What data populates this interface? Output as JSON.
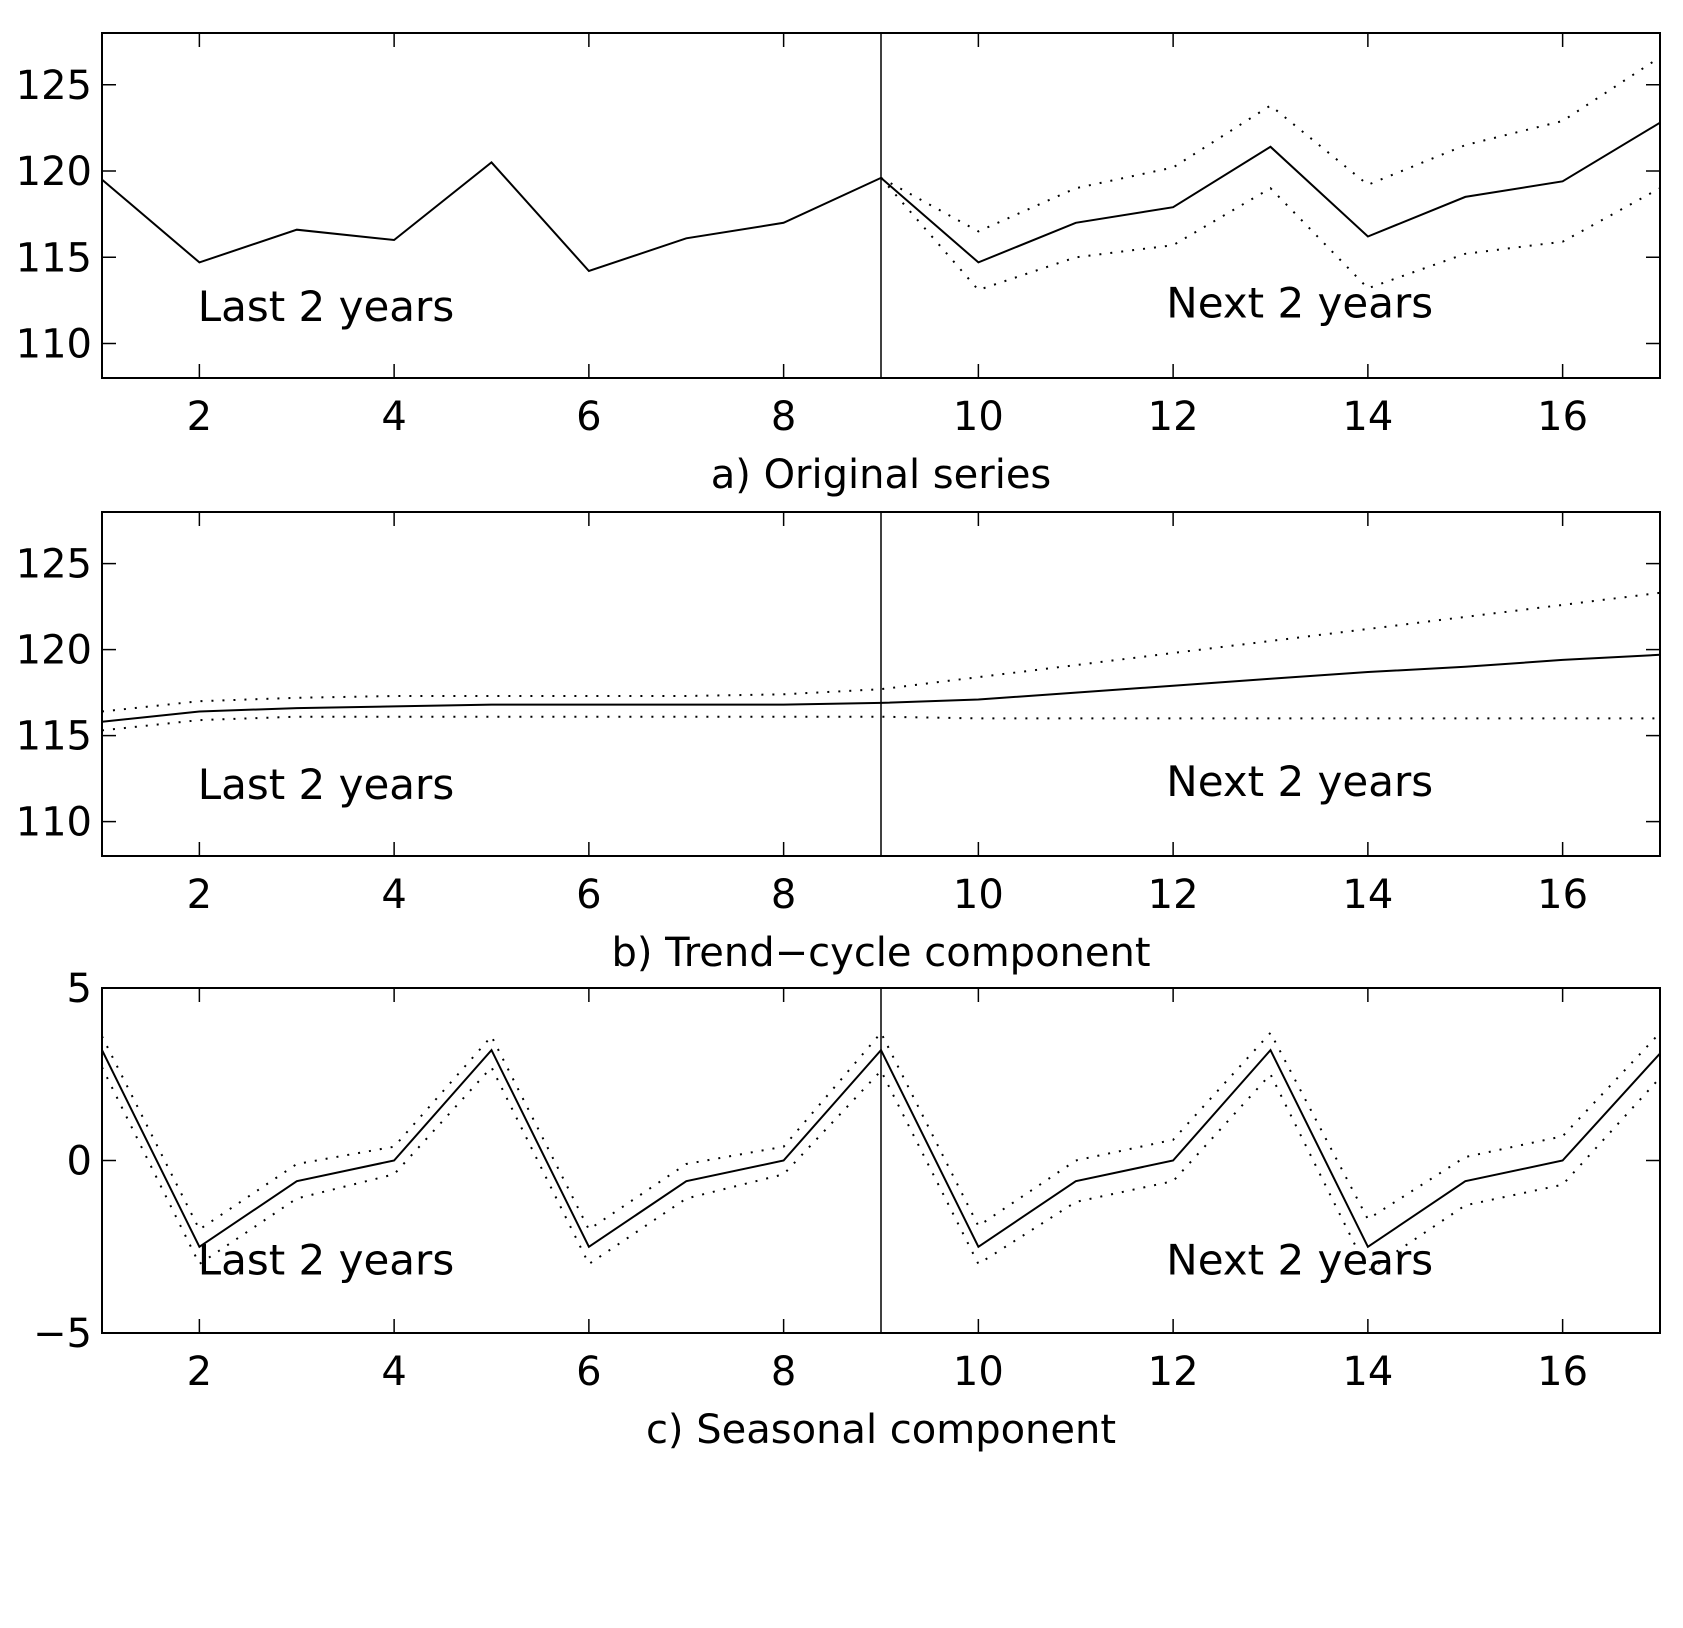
{
  "chart_data": [
    {
      "type": "line",
      "caption": "a) Original series",
      "xlim": [
        1,
        17
      ],
      "ylim": [
        108,
        128
      ],
      "xticks": [
        2,
        4,
        6,
        8,
        10,
        12,
        14,
        16
      ],
      "yticks": [
        110,
        115,
        120,
        125
      ],
      "divider_x": 9,
      "annotations": [
        {
          "text": "Last 2 years",
          "x": 3.3,
          "y": 111.3
        },
        {
          "text": "Next 2 years",
          "x": 13.3,
          "y": 111.5
        }
      ],
      "series": [
        {
          "style": "solid",
          "x": [
            1,
            2,
            3,
            4,
            5,
            6,
            7,
            8,
            9,
            10,
            11,
            12,
            13,
            14,
            15,
            16,
            17
          ],
          "values": [
            119.5,
            114.7,
            116.6,
            116.0,
            120.5,
            114.2,
            116.1,
            117.0,
            119.6,
            114.7,
            117.0,
            117.9,
            121.4,
            116.2,
            118.5,
            119.4,
            122.8
          ]
        },
        {
          "style": "dotted",
          "x": [
            9,
            10,
            11,
            12,
            13,
            14,
            15,
            16,
            17
          ],
          "values": [
            119.6,
            116.5,
            119.0,
            120.2,
            123.8,
            119.2,
            121.5,
            122.9,
            126.6
          ]
        },
        {
          "style": "dotted",
          "x": [
            9,
            10,
            11,
            12,
            13,
            14,
            15,
            16,
            17
          ],
          "values": [
            119.6,
            113.1,
            115.0,
            115.7,
            119.0,
            113.2,
            115.2,
            115.9,
            119.0
          ]
        }
      ]
    },
    {
      "type": "line",
      "caption": "b) Trend−cycle component",
      "xlim": [
        1,
        17
      ],
      "ylim": [
        108,
        128
      ],
      "xticks": [
        2,
        4,
        6,
        8,
        10,
        12,
        14,
        16
      ],
      "yticks": [
        110,
        115,
        120,
        125
      ],
      "divider_x": 9,
      "annotations": [
        {
          "text": "Last 2 years",
          "x": 3.3,
          "y": 111.3
        },
        {
          "text": "Next 2 years",
          "x": 13.3,
          "y": 111.5
        }
      ],
      "series": [
        {
          "style": "solid",
          "x": [
            1,
            2,
            3,
            4,
            5,
            6,
            7,
            8,
            9,
            10,
            11,
            12,
            13,
            14,
            15,
            16,
            17
          ],
          "values": [
            115.8,
            116.4,
            116.6,
            116.7,
            116.8,
            116.8,
            116.8,
            116.8,
            116.9,
            117.1,
            117.5,
            117.9,
            118.3,
            118.7,
            119.0,
            119.4,
            119.7
          ]
        },
        {
          "style": "dotted",
          "x": [
            1,
            2,
            3,
            4,
            5,
            6,
            7,
            8,
            9,
            10,
            11,
            12,
            13,
            14,
            15,
            16,
            17
          ],
          "values": [
            116.4,
            117.0,
            117.2,
            117.3,
            117.3,
            117.3,
            117.3,
            117.4,
            117.7,
            118.4,
            119.1,
            119.8,
            120.5,
            121.2,
            121.9,
            122.6,
            123.3
          ]
        },
        {
          "style": "dotted",
          "x": [
            1,
            2,
            3,
            4,
            5,
            6,
            7,
            8,
            9,
            10,
            11,
            12,
            13,
            14,
            15,
            16,
            17
          ],
          "values": [
            115.3,
            115.9,
            116.1,
            116.1,
            116.1,
            116.1,
            116.1,
            116.1,
            116.1,
            116.0,
            116.0,
            116.0,
            116.0,
            116.0,
            116.0,
            116.0,
            116.0
          ]
        }
      ]
    },
    {
      "type": "line",
      "caption": "c) Seasonal component",
      "xlim": [
        1,
        17
      ],
      "ylim": [
        -5,
        5
      ],
      "xticks": [
        2,
        4,
        6,
        8,
        10,
        12,
        14,
        16
      ],
      "yticks": [
        -5,
        0,
        5
      ],
      "ytick_labels": [
        "−5",
        "0",
        "5"
      ],
      "divider_x": 9,
      "annotations": [
        {
          "text": "Last 2 years",
          "x": 3.3,
          "y": -3.3
        },
        {
          "text": "Next 2 years",
          "x": 13.3,
          "y": -3.3
        }
      ],
      "series": [
        {
          "style": "solid",
          "x": [
            1,
            2,
            3,
            4,
            5,
            6,
            7,
            8,
            9,
            10,
            11,
            12,
            13,
            14,
            15,
            16,
            17
          ],
          "values": [
            3.2,
            -2.5,
            -0.6,
            0.0,
            3.2,
            -2.5,
            -0.6,
            0.0,
            3.2,
            -2.5,
            -0.6,
            0.0,
            3.2,
            -2.5,
            -0.6,
            0.0,
            3.1
          ]
        },
        {
          "style": "dotted",
          "x": [
            1,
            2,
            3,
            4,
            5,
            6,
            7,
            8,
            9,
            10,
            11,
            12,
            13,
            14,
            15,
            16,
            17
          ],
          "values": [
            3.6,
            -2.0,
            -0.1,
            0.4,
            3.6,
            -2.0,
            -0.1,
            0.4,
            3.7,
            -1.9,
            0.0,
            0.6,
            3.7,
            -1.7,
            0.1,
            0.7,
            3.7
          ]
        },
        {
          "style": "dotted",
          "x": [
            1,
            2,
            3,
            4,
            5,
            6,
            7,
            8,
            9,
            10,
            11,
            12,
            13,
            14,
            15,
            16,
            17
          ],
          "values": [
            2.7,
            -3.0,
            -1.1,
            -0.4,
            2.7,
            -3.0,
            -1.1,
            -0.4,
            2.6,
            -3.0,
            -1.2,
            -0.6,
            2.5,
            -3.2,
            -1.3,
            -0.7,
            2.4
          ]
        }
      ]
    }
  ]
}
